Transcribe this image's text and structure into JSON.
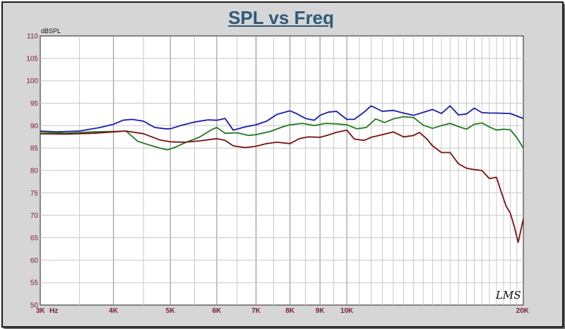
{
  "colors": {
    "background": "#d6d6d6",
    "plot_background": "#ffffff",
    "title": "#2e5a7a",
    "tick_text": "#7a1a3a",
    "grid_major": "#888888",
    "grid_minor": "#c8c8c8",
    "series_blue": "#1c1ca8",
    "series_green": "#1e7a1e",
    "series_red": "#7a1010"
  },
  "chart_data": {
    "type": "line",
    "title": "SPL vs Freq",
    "ylabel": "dBSPL",
    "xlabel": "",
    "x_unit": "Hz",
    "x_scale": "log",
    "xlim": [
      3000,
      20000
    ],
    "ylim": [
      50,
      110
    ],
    "grid": true,
    "y_ticks": [
      50,
      55,
      60,
      65,
      70,
      75,
      80,
      85,
      90,
      95,
      100,
      105,
      110
    ],
    "x_ticks": [
      {
        "value": 3000,
        "label": "3K"
      },
      {
        "value": 4000,
        "label": "4K"
      },
      {
        "value": 5000,
        "label": "5K"
      },
      {
        "value": 6000,
        "label": "6K"
      },
      {
        "value": 7000,
        "label": "7K"
      },
      {
        "value": 8000,
        "label": "8K"
      },
      {
        "value": 9000,
        "label": "9K"
      },
      {
        "value": 10000,
        "label": "10K"
      },
      {
        "value": 20000,
        "label": "20K"
      }
    ],
    "watermark": "LMS",
    "series": [
      {
        "color": "#1c1ca8",
        "x": [
          3000,
          3200,
          3500,
          3800,
          4000,
          4150,
          4300,
          4500,
          4700,
          4900,
          5000,
          5200,
          5500,
          5800,
          6000,
          6200,
          6400,
          6700,
          7000,
          7300,
          7600,
          8000,
          8200,
          8500,
          8800,
          9000,
          9300,
          9600,
          10000,
          10300,
          10700,
          11000,
          11500,
          12000,
          12500,
          13000,
          14000,
          14500,
          15000,
          15500,
          16000,
          16500,
          17000,
          17500,
          18000,
          19000,
          20000
        ],
        "y": [
          88.8,
          88.6,
          88.8,
          89.6,
          90.3,
          91.2,
          91.4,
          91.0,
          89.6,
          89.3,
          89.3,
          90.0,
          90.8,
          91.3,
          91.2,
          91.6,
          89.0,
          89.7,
          90.2,
          91.0,
          92.5,
          93.3,
          92.7,
          91.6,
          91.2,
          92.3,
          93.0,
          93.2,
          91.4,
          91.4,
          93.0,
          94.4,
          93.2,
          93.4,
          92.8,
          92.3,
          93.6,
          92.7,
          94.4,
          92.4,
          92.6,
          93.9,
          92.9,
          92.8,
          92.8,
          92.7,
          91.6
        ]
      },
      {
        "color": "#1e7a1e",
        "x": [
          3000,
          3300,
          3700,
          4000,
          4200,
          4400,
          4600,
          4800,
          4950,
          5100,
          5300,
          5600,
          5900,
          6000,
          6200,
          6500,
          6800,
          7000,
          7400,
          7800,
          8000,
          8400,
          8800,
          9200,
          9600,
          10000,
          10400,
          10800,
          11200,
          11600,
          12000,
          12500,
          13000,
          13500,
          14000,
          14500,
          15000,
          15500,
          16000,
          16500,
          17000,
          17500,
          18000,
          18500,
          19000,
          19500,
          20000
        ],
        "y": [
          88.6,
          88.3,
          88.6,
          88.7,
          88.8,
          86.5,
          85.7,
          85.0,
          84.6,
          85.2,
          86.2,
          87.4,
          89.2,
          89.6,
          88.3,
          88.4,
          87.8,
          88.0,
          88.7,
          89.8,
          90.2,
          90.5,
          90.0,
          90.5,
          90.4,
          90.2,
          89.3,
          89.6,
          91.5,
          90.7,
          91.5,
          92.0,
          91.8,
          90.1,
          89.4,
          90.0,
          90.5,
          89.8,
          89.2,
          90.3,
          90.6,
          89.7,
          89.0,
          89.2,
          89.1,
          87.3,
          85.0
        ]
      },
      {
        "color": "#7a1010",
        "x": [
          3000,
          3300,
          3700,
          4000,
          4200,
          4500,
          4800,
          5000,
          5300,
          5600,
          6000,
          6200,
          6400,
          6700,
          7000,
          7300,
          7600,
          8000,
          8300,
          8600,
          9000,
          9300,
          9600,
          10000,
          10300,
          10700,
          11000,
          11500,
          12000,
          12500,
          13000,
          13300,
          13700,
          14000,
          14500,
          15000,
          15500,
          16000,
          16500,
          17000,
          17500,
          18000,
          18300,
          18700,
          19000,
          19300,
          19600,
          20000
        ],
        "y": [
          88.2,
          88.1,
          88.3,
          88.6,
          88.8,
          88.2,
          86.8,
          86.4,
          86.3,
          86.6,
          87.1,
          86.7,
          85.5,
          85.1,
          85.4,
          86.0,
          86.3,
          86.0,
          87.1,
          87.5,
          87.4,
          87.9,
          88.5,
          89.0,
          87.0,
          86.7,
          87.4,
          88.0,
          88.6,
          87.5,
          87.8,
          88.5,
          87.0,
          85.5,
          84.0,
          84.0,
          81.5,
          80.5,
          80.2,
          80.0,
          78.2,
          78.5,
          75.5,
          72.0,
          70.5,
          67.5,
          64.0,
          69.2
        ]
      }
    ]
  }
}
